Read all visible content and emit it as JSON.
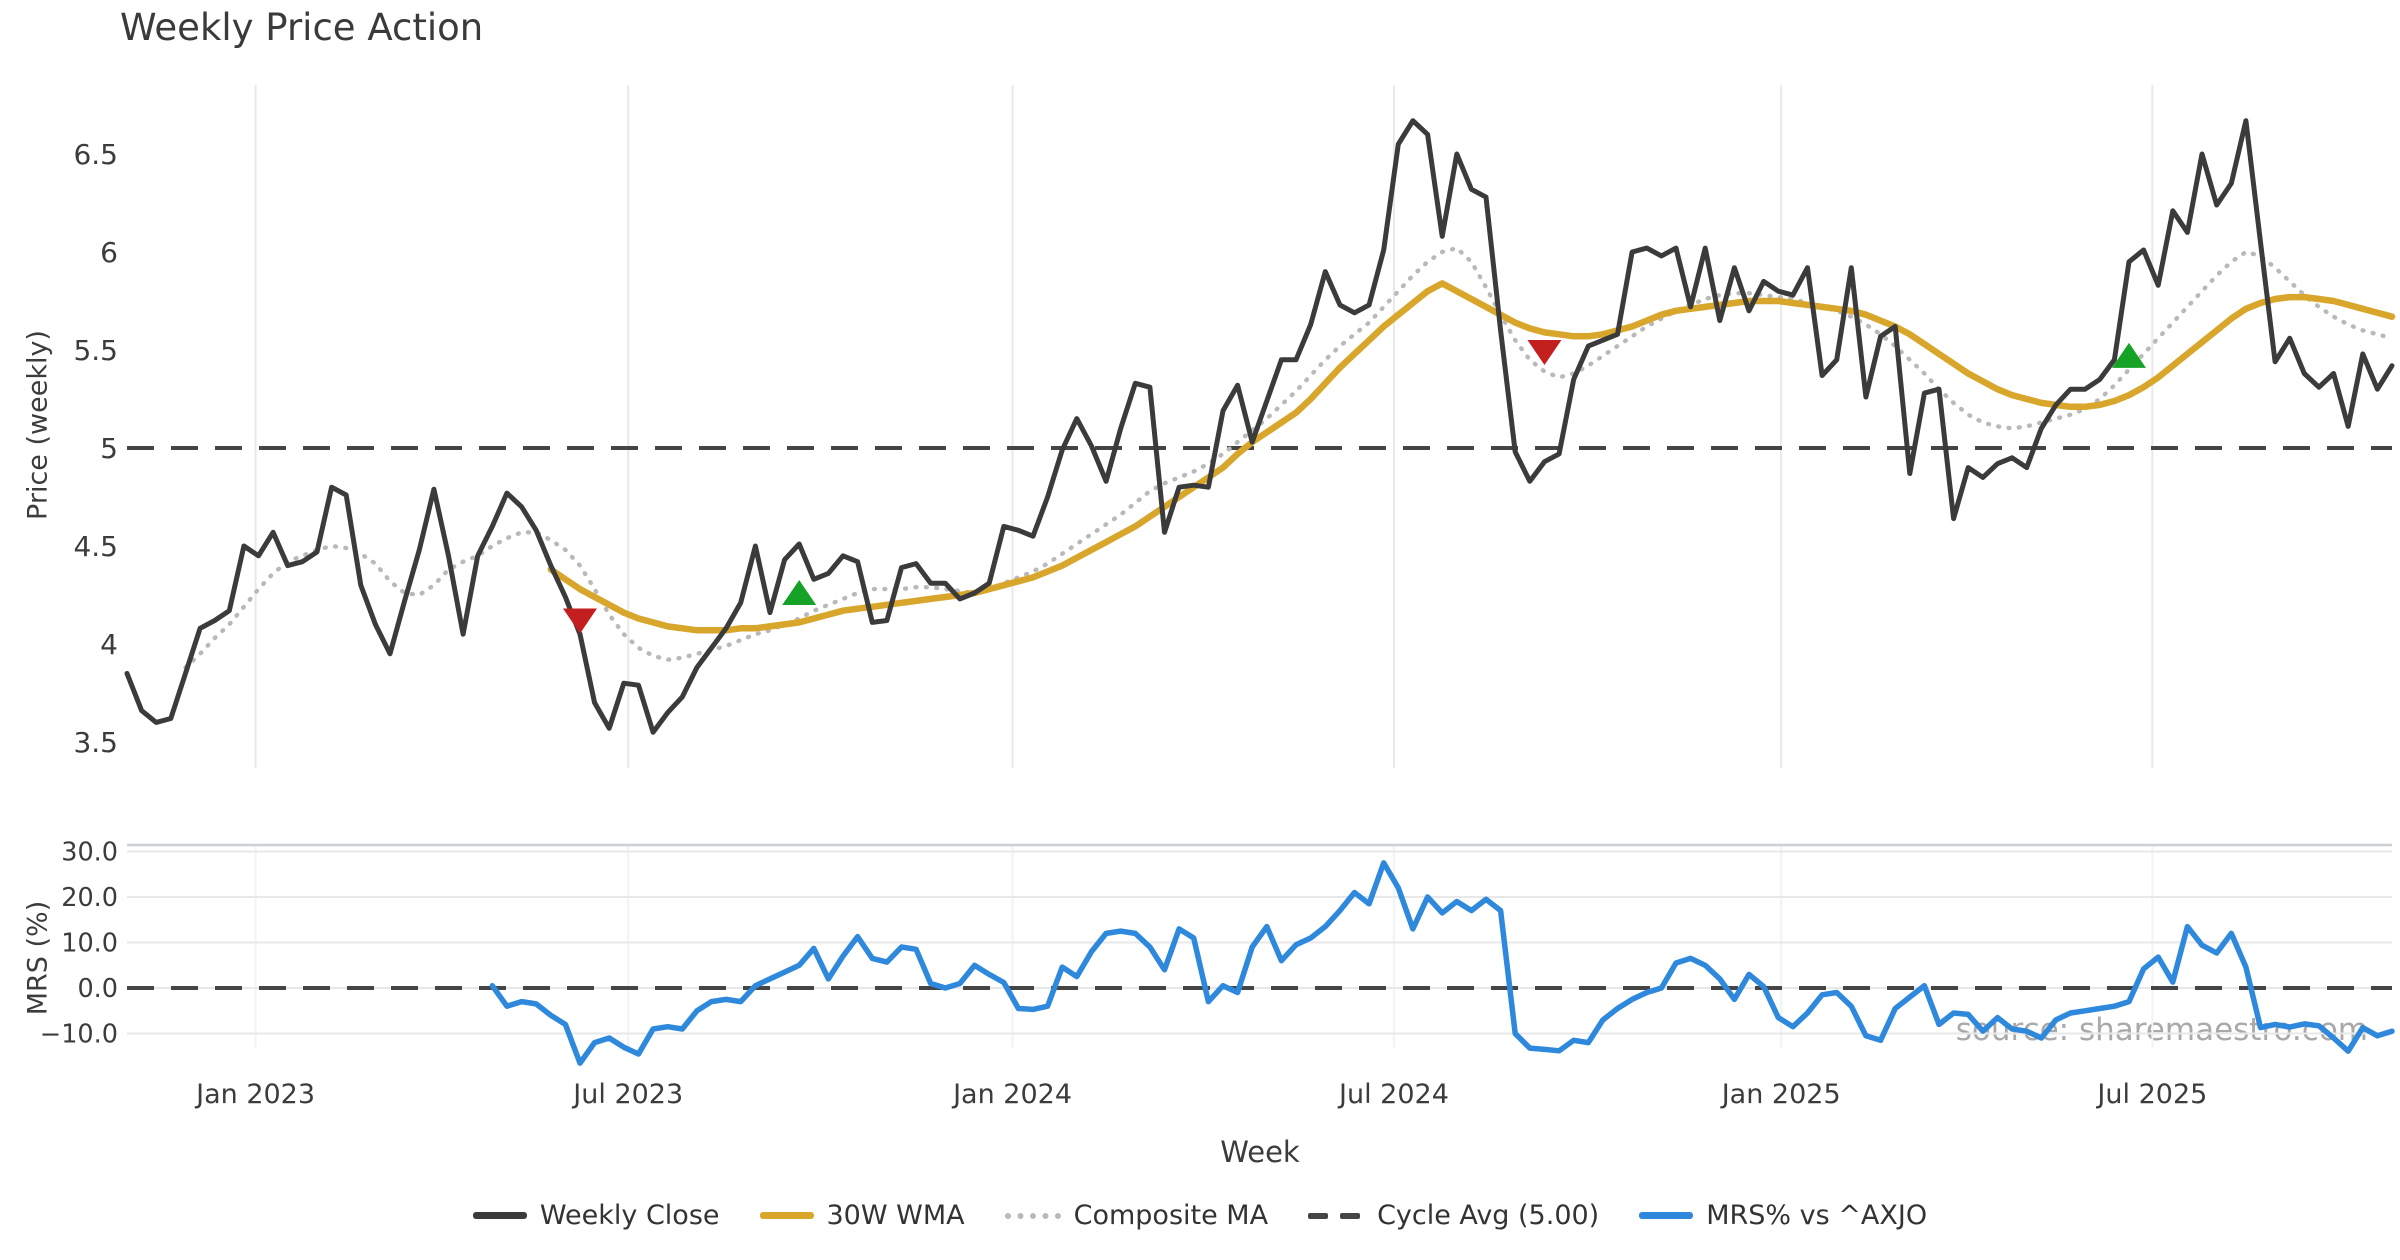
{
  "title": "Weekly Price Action",
  "source_note": "source: sharemaestro.com",
  "x_axis": {
    "label": "Week"
  },
  "colors": {
    "close": "#3b3b3b",
    "wma": "#d9a62c",
    "composite": "#b9b9b9",
    "cycle_dash": "#454545",
    "mrs": "#2e89dd",
    "sell_marker": "#c41f1f",
    "buy_marker": "#15a227",
    "grid": "#e9e9e9",
    "mrs_grid": "#e8e8e8",
    "mrs_faint_grid": "#f2f3f5",
    "spine": "#ccd0d5",
    "tick_text": "#3c3c3c",
    "source_text": "#a9a9a9"
  },
  "legend": {
    "items": [
      {
        "label": "Weekly Close",
        "style": "solid",
        "color": "#3b3b3b"
      },
      {
        "label": "30W WMA",
        "style": "solid",
        "color": "#d9a62c"
      },
      {
        "label": "Composite MA",
        "style": "dotted",
        "color": "#b9b9b9"
      },
      {
        "label": "Cycle Avg (5.00)",
        "style": "dashed",
        "color": "#454545"
      },
      {
        "label": "MRS% vs ^AXJO",
        "style": "solid",
        "color": "#2e89dd"
      }
    ]
  },
  "chart_data": [
    {
      "type": "line",
      "panel": "price",
      "title": "Weekly Price Action",
      "xlabel": "Week",
      "ylabel": "Price (weekly)",
      "ylim": [
        3.35,
        6.85
      ],
      "grid": "vertical-only",
      "legend_position": "bottom-center",
      "x_unit": "weekly index, week 0 = early Nov 2022",
      "n_weeks": 156,
      "x_ticks": [
        {
          "label": "Jan 2023",
          "week": 8.8
        },
        {
          "label": "Jul 2023",
          "week": 34.3
        },
        {
          "label": "Jan 2024",
          "week": 60.6
        },
        {
          "label": "Jul 2024",
          "week": 86.7
        },
        {
          "label": "Jan 2025",
          "week": 113.2
        },
        {
          "label": "Jul 2025",
          "week": 138.6
        }
      ],
      "y_ticks": [
        {
          "label": "6.5",
          "value": 6.5
        },
        {
          "label": "6",
          "value": 6.0
        },
        {
          "label": "5.5",
          "value": 5.5
        },
        {
          "label": "5",
          "value": 5.0
        },
        {
          "label": "4.5",
          "value": 4.5
        },
        {
          "label": "4",
          "value": 4.0
        },
        {
          "label": "3.5",
          "value": 3.5
        }
      ],
      "series": [
        {
          "name": "Weekly Close",
          "style": "solid",
          "color": "#3b3b3b",
          "start_week": 0,
          "values": [
            3.85,
            3.66,
            3.6,
            3.62,
            3.85,
            4.08,
            4.12,
            4.17,
            4.5,
            4.45,
            4.57,
            4.4,
            4.42,
            4.47,
            4.8,
            4.76,
            4.3,
            4.1,
            3.95,
            4.22,
            4.48,
            4.79,
            4.45,
            4.05,
            4.45,
            4.6,
            4.77,
            4.7,
            4.58,
            4.4,
            4.24,
            4.05,
            3.7,
            3.57,
            3.8,
            3.79,
            3.55,
            3.65,
            3.73,
            3.88,
            3.98,
            4.08,
            4.21,
            4.5,
            4.16,
            4.43,
            4.51,
            4.33,
            4.36,
            4.45,
            4.42,
            4.11,
            4.12,
            4.39,
            4.41,
            4.31,
            4.31,
            4.23,
            4.26,
            4.31,
            4.6,
            4.58,
            4.55,
            4.75,
            4.99,
            5.15,
            5.01,
            4.83,
            5.1,
            5.33,
            5.31,
            4.57,
            4.8,
            4.81,
            4.8,
            5.19,
            5.32,
            5.03,
            5.24,
            5.45,
            5.45,
            5.63,
            5.9,
            5.73,
            5.69,
            5.73,
            6.01,
            6.55,
            6.67,
            6.6,
            6.08,
            6.5,
            6.32,
            6.28,
            5.6,
            4.98,
            4.83,
            4.93,
            4.97,
            5.35,
            5.52,
            5.55,
            5.58,
            6.0,
            6.02,
            5.98,
            6.02,
            5.72,
            6.02,
            5.65,
            5.92,
            5.7,
            5.85,
            5.8,
            5.78,
            5.92,
            5.37,
            5.45,
            5.92,
            5.26,
            5.57,
            5.62,
            4.87,
            5.28,
            5.3,
            4.64,
            4.9,
            4.85,
            4.92,
            4.95,
            4.9,
            5.1,
            5.22,
            5.3,
            5.3,
            5.35,
            5.45,
            5.95,
            6.01,
            5.83,
            6.21,
            6.1,
            6.5,
            6.24,
            6.35,
            6.67,
            6.05,
            5.44,
            5.56,
            5.38,
            5.31,
            5.38,
            5.11,
            5.48,
            5.3,
            5.42
          ]
        },
        {
          "name": "30W WMA",
          "style": "solid",
          "color": "#d9a62c",
          "start_week": 29,
          "values": [
            4.38,
            4.33,
            4.28,
            4.24,
            4.2,
            4.16,
            4.13,
            4.11,
            4.09,
            4.08,
            4.07,
            4.07,
            4.07,
            4.08,
            4.08,
            4.09,
            4.1,
            4.11,
            4.13,
            4.15,
            4.17,
            4.18,
            4.19,
            4.2,
            4.21,
            4.22,
            4.23,
            4.24,
            4.25,
            4.26,
            4.28,
            4.3,
            4.32,
            4.34,
            4.37,
            4.4,
            4.44,
            4.48,
            4.52,
            4.56,
            4.6,
            4.65,
            4.7,
            4.75,
            4.8,
            4.85,
            4.9,
            4.97,
            5.03,
            5.08,
            5.13,
            5.18,
            5.25,
            5.33,
            5.41,
            5.48,
            5.55,
            5.62,
            5.68,
            5.74,
            5.8,
            5.84,
            5.8,
            5.76,
            5.72,
            5.68,
            5.64,
            5.61,
            5.59,
            5.58,
            5.57,
            5.57,
            5.58,
            5.6,
            5.62,
            5.65,
            5.68,
            5.7,
            5.71,
            5.72,
            5.73,
            5.74,
            5.75,
            5.75,
            5.75,
            5.74,
            5.73,
            5.72,
            5.71,
            5.7,
            5.68,
            5.65,
            5.62,
            5.58,
            5.53,
            5.48,
            5.43,
            5.38,
            5.34,
            5.3,
            5.27,
            5.25,
            5.23,
            5.22,
            5.21,
            5.21,
            5.22,
            5.24,
            5.27,
            5.31,
            5.36,
            5.42,
            5.48,
            5.54,
            5.6,
            5.66,
            5.71,
            5.74,
            5.76,
            5.77,
            5.77,
            5.76,
            5.75,
            5.73,
            5.71,
            5.69,
            5.67
          ]
        },
        {
          "name": "Composite MA",
          "style": "dotted",
          "color": "#b9b9b9",
          "start_week": 4,
          "values": [
            3.88,
            3.95,
            4.03,
            4.1,
            4.19,
            4.28,
            4.36,
            4.42,
            4.45,
            4.48,
            4.5,
            4.49,
            4.46,
            4.41,
            4.32,
            4.26,
            4.25,
            4.3,
            4.38,
            4.42,
            4.45,
            4.5,
            4.54,
            4.57,
            4.57,
            4.53,
            4.48,
            4.4,
            4.28,
            4.15,
            4.05,
            3.98,
            3.94,
            3.92,
            3.93,
            3.95,
            3.97,
            3.99,
            4.02,
            4.05,
            4.07,
            4.1,
            4.13,
            4.17,
            4.2,
            4.23,
            4.26,
            4.28,
            4.28,
            4.28,
            4.29,
            4.29,
            4.28,
            4.27,
            4.26,
            4.28,
            4.31,
            4.34,
            4.37,
            4.41,
            4.46,
            4.51,
            4.56,
            4.61,
            4.66,
            4.72,
            4.78,
            4.82,
            4.85,
            4.88,
            4.92,
            4.97,
            5.03,
            5.09,
            5.15,
            5.22,
            5.29,
            5.37,
            5.45,
            5.52,
            5.58,
            5.64,
            5.72,
            5.8,
            5.88,
            5.95,
            6.0,
            6.02,
            5.95,
            5.82,
            5.68,
            5.55,
            5.45,
            5.39,
            5.36,
            5.38,
            5.42,
            5.47,
            5.52,
            5.57,
            5.62,
            5.66,
            5.7,
            5.73,
            5.76,
            5.78,
            5.79,
            5.79,
            5.78,
            5.77,
            5.76,
            5.74,
            5.72,
            5.7,
            5.67,
            5.63,
            5.58,
            5.52,
            5.45,
            5.38,
            5.3,
            5.23,
            5.17,
            5.13,
            5.11,
            5.1,
            5.11,
            5.13,
            5.15,
            5.17,
            5.2,
            5.25,
            5.32,
            5.4,
            5.48,
            5.56,
            5.64,
            5.72,
            5.8,
            5.88,
            5.95,
            6.0,
            5.98,
            5.92,
            5.85,
            5.78,
            5.72,
            5.67,
            5.63,
            5.6,
            5.58,
            5.56
          ]
        },
        {
          "name": "Cycle Avg (5.00)",
          "style": "dashed",
          "color": "#454545",
          "constant_value": 5.0
        }
      ],
      "markers": {
        "sell_triangles": [
          {
            "week": 31,
            "price": 4.12
          },
          {
            "week": 97,
            "price": 5.49
          }
        ],
        "buy_triangles": [
          {
            "week": 46,
            "price": 4.26
          },
          {
            "week": 137,
            "price": 5.47
          }
        ]
      }
    },
    {
      "type": "line",
      "panel": "mrs",
      "xlabel": "Week",
      "ylabel": "MRS (%)",
      "ylim": [
        -18,
        31
      ],
      "grid": "horizontal",
      "y_ticks": [
        {
          "label": "30.0",
          "value": 30.0
        },
        {
          "label": "20.0",
          "value": 20.0
        },
        {
          "label": "10.0",
          "value": 10.0
        },
        {
          "label": "0.0",
          "value": 0.0
        },
        {
          "label": "−10.0",
          "value": -10.0
        }
      ],
      "series": [
        {
          "name": "MRS% vs ^AXJO",
          "style": "solid",
          "color": "#2e89dd",
          "start_week": 25,
          "values": [
            0.5,
            -4.0,
            -3.0,
            -3.5,
            -6.0,
            -8.0,
            -16.5,
            -12.0,
            -11.0,
            -13.0,
            -14.5,
            -9.0,
            -8.5,
            -9.0,
            -5.0,
            -3.0,
            -2.5,
            -3.0,
            0.5,
            2.0,
            3.5,
            5.0,
            8.7,
            2.0,
            7.0,
            11.3,
            6.5,
            5.7,
            9.0,
            8.5,
            1.0,
            0.0,
            1.0,
            5.0,
            3.0,
            1.2,
            -4.5,
            -4.7,
            -4.0,
            4.6,
            2.5,
            8.0,
            12.0,
            12.5,
            12.0,
            9.0,
            4.0,
            13.0,
            11.0,
            -3.0,
            0.5,
            -1.0,
            9.0,
            13.5,
            6.0,
            9.5,
            11.0,
            13.5,
            17.0,
            21.0,
            18.5,
            27.5,
            22.0,
            13.0,
            20.0,
            16.5,
            19.0,
            17.0,
            19.5,
            17.0,
            -10.0,
            -13.2,
            -13.5,
            -13.8,
            -11.5,
            -12.0,
            -7.0,
            -4.5,
            -2.5,
            -1.0,
            0.0,
            5.5,
            6.5,
            5.0,
            2.0,
            -2.5,
            3.0,
            0.3,
            -6.5,
            -8.5,
            -5.5,
            -1.5,
            -1.0,
            -4.0,
            -10.5,
            -11.5,
            -4.5,
            -2.0,
            0.5,
            -8.0,
            -5.5,
            -5.8,
            -9.5,
            -6.5,
            -9.0,
            -9.5,
            -11.0,
            -7.0,
            -5.5,
            -5.0,
            -4.5,
            -4.0,
            -3.0,
            4.2,
            6.8,
            1.3,
            13.5,
            9.4,
            7.7,
            12.0,
            4.6,
            -8.7,
            -8.0,
            -8.6,
            -7.9,
            -8.3,
            -11.0,
            -13.9,
            -8.7,
            -10.5,
            -9.5
          ]
        },
        {
          "name": "Zero line",
          "style": "dashed",
          "color": "#454545",
          "constant_value": 0.0
        }
      ]
    }
  ]
}
